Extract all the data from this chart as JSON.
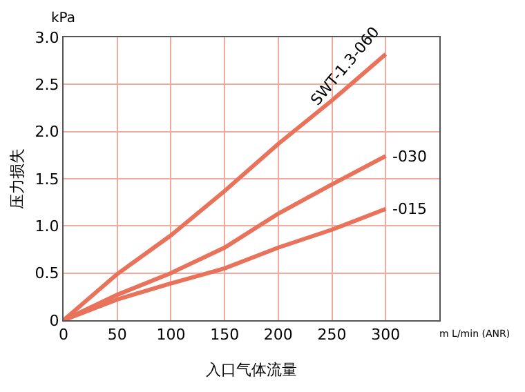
{
  "chart_data": {
    "type": "line",
    "xlabel": "入口气体流量",
    "ylabel": "压力损失",
    "annotations": [
      "kPa",
      "m L/min (ANR)"
    ],
    "x": [
      0,
      50,
      100,
      150,
      200,
      250,
      300
    ],
    "series": [
      {
        "name": "SWT-1.3-060",
        "color": "#e8735a",
        "values": [
          0,
          0.49,
          0.9,
          1.37,
          1.87,
          2.33,
          2.82
        ]
      },
      {
        "name": "-030",
        "color": "#e8735a",
        "values": [
          0,
          0.27,
          0.5,
          0.77,
          1.13,
          1.44,
          1.74
        ]
      },
      {
        "name": "-015",
        "color": "#e8735a",
        "values": [
          0,
          0.22,
          0.39,
          0.55,
          0.77,
          0.96,
          1.18
        ]
      }
    ],
    "xlim": [
      0,
      350
    ],
    "xticks": [
      0,
      50,
      100,
      150,
      200,
      250,
      300
    ],
    "ylim": [
      0,
      3
    ],
    "yticks": [
      0,
      {
        "value": 0.5,
        "label": "0.5"
      },
      {
        "value": 1,
        "label": "1.0"
      },
      {
        "value": 1.5,
        "label": "1.5"
      },
      {
        "value": 2,
        "label": "2.0"
      },
      {
        "value": 2.5,
        "label": "2.5"
      },
      {
        "value": 3,
        "label": "3.0"
      }
    ],
    "grid": true,
    "legend": false,
    "marker": "none",
    "line_style": "solid"
  }
}
